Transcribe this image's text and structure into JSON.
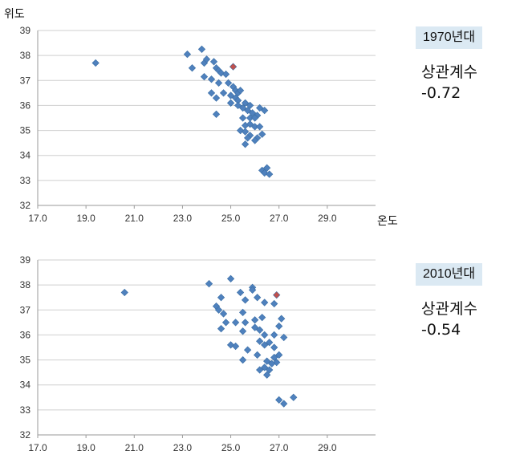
{
  "chart_data": [
    {
      "type": "scatter",
      "badge": "1970년대",
      "corr_label": "상관계수",
      "corr_value": "-0.72",
      "ylabel": "위도",
      "xlabel": "온도",
      "xlim": [
        17,
        31
      ],
      "ylim": [
        32,
        39
      ],
      "xticks": [
        "17.0",
        "19.0",
        "21.0",
        "23.0",
        "25.0",
        "27.0",
        "29.0"
      ],
      "yticks": [
        "32",
        "33",
        "34",
        "35",
        "36",
        "37",
        "38",
        "39"
      ],
      "grid": "horizontal",
      "point_color": "#4f81bd",
      "highlight_color": "#c0504d",
      "points": [
        [
          19.4,
          37.7
        ],
        [
          23.2,
          38.05
        ],
        [
          23.8,
          38.25
        ],
        [
          23.9,
          37.7
        ],
        [
          24.0,
          37.85
        ],
        [
          24.3,
          37.75
        ],
        [
          24.4,
          37.5
        ],
        [
          24.5,
          37.4
        ],
        [
          24.6,
          37.3
        ],
        [
          24.8,
          37.25
        ],
        [
          23.9,
          37.15
        ],
        [
          24.2,
          37.05
        ],
        [
          24.5,
          36.9
        ],
        [
          24.9,
          36.9
        ],
        [
          25.1,
          36.75
        ],
        [
          25.2,
          36.6
        ],
        [
          25.3,
          36.5
        ],
        [
          25.4,
          36.6
        ],
        [
          25.0,
          36.4
        ],
        [
          25.2,
          36.3
        ],
        [
          25.3,
          36.2
        ],
        [
          25.0,
          36.1
        ],
        [
          24.7,
          36.5
        ],
        [
          24.2,
          36.5
        ],
        [
          24.4,
          36.3
        ],
        [
          25.3,
          36.0
        ],
        [
          25.6,
          36.1
        ],
        [
          25.8,
          36.0
        ],
        [
          25.5,
          35.9
        ],
        [
          25.7,
          35.8
        ],
        [
          25.9,
          35.7
        ],
        [
          26.1,
          35.6
        ],
        [
          26.2,
          35.9
        ],
        [
          26.4,
          35.8
        ],
        [
          24.4,
          35.65
        ],
        [
          25.5,
          35.5
        ],
        [
          25.8,
          35.5
        ],
        [
          26.0,
          35.5
        ],
        [
          25.6,
          35.2
        ],
        [
          25.8,
          35.25
        ],
        [
          26.0,
          35.15
        ],
        [
          26.2,
          35.15
        ],
        [
          25.4,
          35.0
        ],
        [
          25.6,
          34.95
        ],
        [
          25.8,
          34.8
        ],
        [
          26.1,
          34.7
        ],
        [
          26.3,
          34.85
        ],
        [
          25.7,
          34.7
        ],
        [
          26.0,
          34.6
        ],
        [
          25.6,
          34.45
        ],
        [
          26.3,
          33.4
        ],
        [
          26.5,
          33.5
        ],
        [
          26.4,
          33.3
        ],
        [
          26.6,
          33.25
        ],
        [
          23.4,
          37.5
        ]
      ],
      "highlight_points": [
        [
          25.1,
          37.55
        ]
      ]
    },
    {
      "type": "scatter",
      "badge": "2010년대",
      "corr_label": "상관계수",
      "corr_value": "-0.54",
      "ylabel": "",
      "xlabel": "",
      "xlim": [
        17,
        31
      ],
      "ylim": [
        32,
        39
      ],
      "xticks": [
        "17.0",
        "19.0",
        "21.0",
        "23.0",
        "25.0",
        "27.0",
        "29.0"
      ],
      "yticks": [
        "32",
        "33",
        "34",
        "35",
        "36",
        "37",
        "38",
        "39"
      ],
      "grid": "horizontal",
      "point_color": "#4f81bd",
      "highlight_color": "#c0504d",
      "points": [
        [
          20.6,
          37.7
        ],
        [
          24.1,
          38.05
        ],
        [
          25.0,
          38.25
        ],
        [
          25.9,
          37.9
        ],
        [
          25.9,
          37.8
        ],
        [
          25.4,
          37.7
        ],
        [
          26.1,
          37.5
        ],
        [
          25.6,
          37.4
        ],
        [
          24.6,
          37.5
        ],
        [
          26.4,
          37.3
        ],
        [
          26.8,
          37.25
        ],
        [
          24.4,
          37.15
        ],
        [
          24.5,
          37.0
        ],
        [
          24.7,
          36.85
        ],
        [
          25.5,
          36.9
        ],
        [
          26.0,
          36.6
        ],
        [
          26.3,
          36.7
        ],
        [
          27.1,
          36.65
        ],
        [
          24.8,
          36.5
        ],
        [
          25.2,
          36.5
        ],
        [
          25.6,
          36.5
        ],
        [
          26.0,
          36.3
        ],
        [
          26.2,
          36.2
        ],
        [
          26.4,
          36.0
        ],
        [
          24.6,
          36.25
        ],
        [
          25.5,
          36.15
        ],
        [
          26.8,
          36.0
        ],
        [
          27.2,
          35.9
        ],
        [
          26.2,
          35.75
        ],
        [
          26.4,
          35.6
        ],
        [
          26.6,
          35.7
        ],
        [
          26.8,
          35.5
        ],
        [
          25.0,
          35.6
        ],
        [
          25.2,
          35.55
        ],
        [
          25.7,
          35.4
        ],
        [
          26.1,
          35.2
        ],
        [
          26.8,
          35.1
        ],
        [
          27.0,
          35.2
        ],
        [
          26.5,
          34.95
        ],
        [
          26.4,
          34.7
        ],
        [
          26.6,
          34.6
        ],
        [
          26.5,
          34.4
        ],
        [
          26.2,
          34.6
        ],
        [
          25.5,
          35.0
        ],
        [
          26.9,
          34.9
        ],
        [
          26.7,
          34.85
        ],
        [
          27.0,
          33.4
        ],
        [
          27.2,
          33.25
        ],
        [
          27.6,
          33.5
        ],
        [
          27.0,
          36.35
        ]
      ],
      "highlight_points": [
        [
          26.9,
          37.6
        ]
      ]
    }
  ]
}
